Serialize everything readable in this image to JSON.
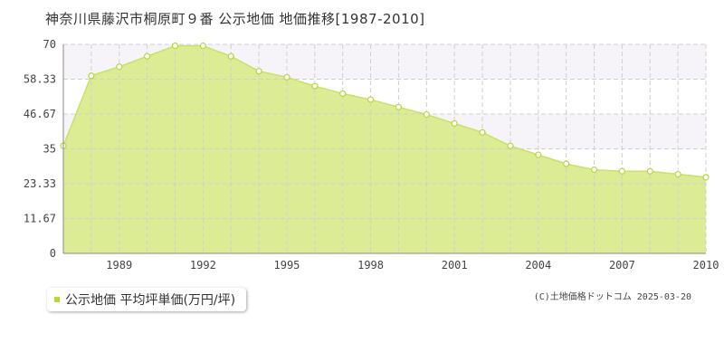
{
  "title": "神奈川県藤沢市桐原町９番 公示地価 地価推移[1987-2010]",
  "legend": {
    "label": "公示地価 平均坪単価(万円/坪)"
  },
  "credit": "(C)土地価格ドットコム 2025-03-20",
  "colors": {
    "fill": "#dcec94",
    "line": "#c9e06a",
    "marker_stroke": "#b5d83a",
    "grid": "#d0d0d0",
    "band": "#f6f4f8"
  },
  "chart_data": {
    "type": "area",
    "title": "神奈川県藤沢市桐原町９番 公示地価 地価推移[1987-2010]",
    "xlabel": "",
    "ylabel": "",
    "x": [
      1987,
      1988,
      1989,
      1990,
      1991,
      1992,
      1993,
      1994,
      1995,
      1996,
      1997,
      1998,
      1999,
      2000,
      2001,
      2002,
      2003,
      2004,
      2005,
      2006,
      2007,
      2008,
      2009,
      2010
    ],
    "series": [
      {
        "name": "公示地価 平均坪単価(万円/坪)",
        "values": [
          36.0,
          59.5,
          62.5,
          66.0,
          69.5,
          69.5,
          66.0,
          61.0,
          59.0,
          56.0,
          53.5,
          51.5,
          49.0,
          46.5,
          43.5,
          40.5,
          36.0,
          33.0,
          30.0,
          28.0,
          27.5,
          27.5,
          26.5,
          25.5
        ]
      }
    ],
    "xlim": [
      1987,
      2010
    ],
    "ylim": [
      0,
      70
    ],
    "yticks": [
      0,
      11.67,
      23.33,
      35,
      46.67,
      58.33,
      70
    ],
    "ytick_labels": [
      "0",
      "11.67",
      "23.33",
      "35",
      "46.67",
      "58.33",
      "70"
    ],
    "xticks": [
      1989,
      1992,
      1995,
      1998,
      2001,
      2004,
      2007,
      2010
    ],
    "xtick_labels": [
      "1989",
      "1992",
      "1995",
      "1998",
      "2001",
      "2004",
      "2007",
      "2010"
    ],
    "grid": true,
    "legend_position": "bottom-left"
  }
}
